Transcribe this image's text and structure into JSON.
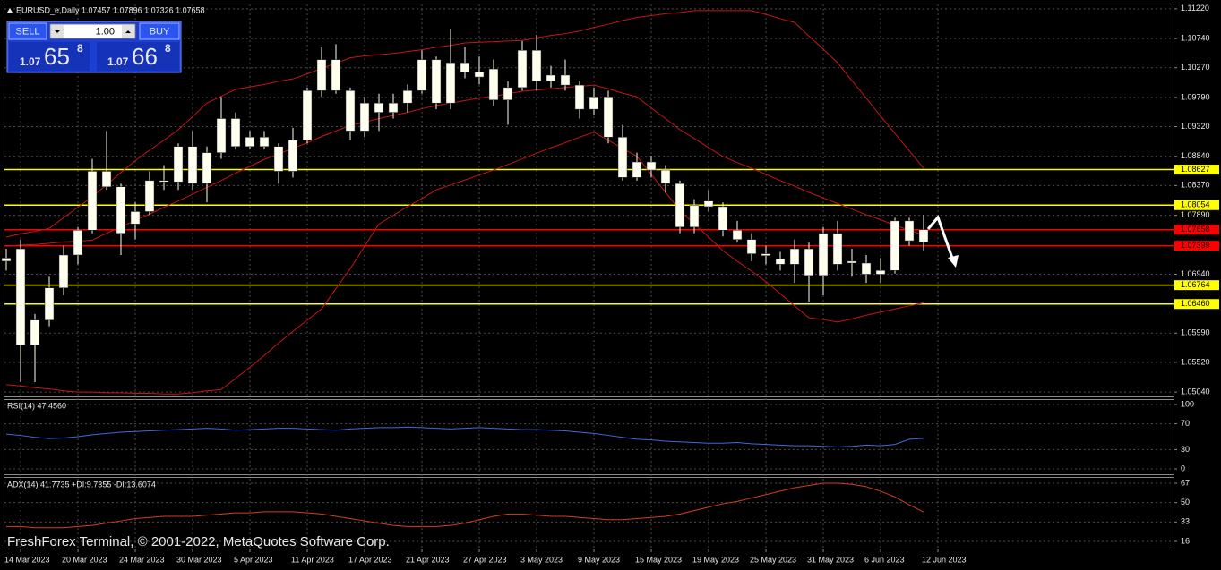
{
  "trade_panel": {
    "sell": "SELL",
    "volume": "1.00",
    "buy": "BUY",
    "bid": {
      "prefix": "1.07",
      "big": "65",
      "small": "8"
    },
    "ask": {
      "prefix": "1.07",
      "big": "66",
      "small": "8"
    }
  },
  "watermark": "FreshForex Terminal, © 2001-2022, MetaQuotes Software Corp.",
  "chart_data": [
    {
      "type": "candlestick",
      "title": "EURUSD_e,Daily 1.07457 1.07896 1.07326 1.07658",
      "categories": [
        null,
        "14 Mar 2023",
        null,
        null,
        null,
        "20 Mar 2023",
        null,
        null,
        null,
        "24 Mar 2023",
        null,
        null,
        null,
        "30 Mar 2023",
        null,
        null,
        null,
        "5 Apr 2023",
        null,
        null,
        null,
        "11 Apr 2023",
        null,
        null,
        null,
        "17 Apr 2023",
        null,
        null,
        null,
        "21 Apr 2023",
        null,
        null,
        null,
        "27 Apr 2023",
        null,
        null,
        null,
        "3 May 2023",
        null,
        null,
        null,
        "9 May 2023",
        null,
        null,
        null,
        "15 May 2023",
        null,
        null,
        null,
        "19 May 2023",
        null,
        null,
        null,
        "25 May 2023",
        null,
        null,
        null,
        "31 May 2023",
        null,
        null,
        null,
        "6 Jun 2023",
        null,
        null,
        null,
        "12 Jun 2023"
      ],
      "open": [
        1.0715,
        1.0735,
        1.058,
        1.062,
        1.0672,
        1.0725,
        1.0765,
        1.086,
        1.0835,
        1.0775,
        1.0795,
        1.0843,
        1.0843,
        1.09,
        1.084,
        1.089,
        1.0945,
        1.09,
        1.0915,
        1.09,
        1.086,
        1.091,
        1.099,
        1.104,
        1.099,
        1.0925,
        1.0955,
        1.097,
        1.097,
        1.099,
        1.104,
        1.097,
        1.1035,
        1.102,
        1.1025,
        1.0975,
        1.0995,
        1.1055,
        1.1015,
        1.1015,
        1.0999,
        1.096,
        1.098,
        1.0915,
        1.085,
        1.0875,
        1.0862,
        1.084,
        1.077,
        1.0812,
        1.0803,
        1.0765,
        1.075,
        1.0727,
        1.0719,
        1.071,
        1.0735,
        1.0692,
        1.076,
        1.0712,
        1.0712,
        1.0694,
        1.07,
        1.078,
        1.07457,
        null
      ],
      "high": [
        1.0735,
        1.075,
        1.063,
        1.069,
        1.074,
        1.077,
        1.088,
        1.0925,
        1.084,
        1.081,
        1.086,
        1.087,
        1.0905,
        1.0925,
        1.09,
        1.098,
        1.0955,
        1.0925,
        1.0925,
        1.0905,
        1.093,
        1.0995,
        1.106,
        1.1065,
        1.0995,
        1.098,
        1.0985,
        1.0985,
        1.1,
        1.1055,
        1.1045,
        1.109,
        1.106,
        1.1045,
        1.104,
        1.1005,
        1.107,
        1.108,
        1.103,
        1.104,
        1.1005,
        1.0995,
        1.099,
        1.0935,
        1.089,
        1.0885,
        1.087,
        1.0845,
        1.0815,
        1.083,
        1.081,
        1.078,
        1.076,
        1.074,
        1.073,
        1.075,
        1.0745,
        1.077,
        1.078,
        1.0735,
        1.0725,
        1.072,
        1.0785,
        1.0785,
        1.07896,
        null
      ],
      "low": [
        1.07,
        1.052,
        1.052,
        1.061,
        1.066,
        1.071,
        1.076,
        1.083,
        1.0725,
        1.075,
        1.079,
        1.083,
        1.083,
        1.083,
        1.081,
        1.088,
        1.0895,
        1.0895,
        1.0895,
        1.084,
        1.085,
        1.0905,
        1.098,
        1.0985,
        1.091,
        1.0915,
        1.0925,
        1.0945,
        1.0955,
        1.0985,
        1.096,
        1.096,
        1.101,
        1.1,
        1.0965,
        1.0935,
        1.099,
        1.099,
        1.0995,
        1.099,
        1.0945,
        1.095,
        1.0905,
        1.0845,
        1.0845,
        1.085,
        1.0825,
        1.076,
        1.076,
        1.0795,
        1.0755,
        1.0745,
        1.0715,
        1.071,
        1.07,
        1.068,
        1.065,
        1.066,
        1.07,
        1.069,
        1.068,
        1.068,
        1.0695,
        1.074,
        1.07326,
        null
      ],
      "close": [
        1.072,
        1.058,
        1.062,
        1.0672,
        1.0725,
        1.0765,
        1.086,
        1.0835,
        1.076,
        1.0795,
        1.0845,
        1.0845,
        1.09,
        1.084,
        1.089,
        1.0945,
        1.09,
        1.0915,
        1.09,
        1.086,
        1.091,
        1.099,
        1.104,
        1.099,
        1.0925,
        1.097,
        1.097,
        1.0955,
        1.099,
        1.104,
        1.097,
        1.1035,
        1.102,
        1.1012,
        1.0975,
        1.0995,
        1.1055,
        1.1005,
        1.1005,
        1.0999,
        1.096,
        1.098,
        1.0915,
        1.085,
        1.0875,
        1.0862,
        1.084,
        1.077,
        1.0805,
        1.0803,
        1.0765,
        1.075,
        1.0727,
        1.0724,
        1.071,
        1.0735,
        1.0692,
        1.076,
        1.071,
        1.0715,
        1.0694,
        1.07,
        1.078,
        1.0748,
        1.07658,
        null
      ],
      "color": "#fffff0",
      "overlays": [
        {
          "color": "#c81414",
          "values": [
            1.0754,
            1.0759,
            1.0763,
            1.0768,
            1.0785,
            1.0802,
            1.0819,
            1.0838,
            1.0858,
            1.0877,
            1.0894,
            1.091,
            1.0927,
            1.0948,
            1.097,
            1.0981,
            1.0992,
            1.0996,
            1.1,
            1.1005,
            1.1009,
            1.1017,
            1.1026,
            1.1034,
            1.1043,
            1.1046,
            1.1048,
            1.105,
            1.1053,
            1.1056,
            1.106,
            1.1063,
            1.1067,
            1.1068,
            1.1069,
            1.107,
            1.1071,
            1.1075,
            1.1079,
            1.1082,
            1.1086,
            1.1092,
            1.1097,
            1.1103,
            1.1108,
            1.1111,
            1.1114,
            1.1116,
            1.1119,
            1.1119,
            1.1119,
            1.1119,
            1.1119,
            1.1113,
            1.1106,
            1.11,
            1.1078,
            1.1057,
            1.1035,
            1.1006,
            1.0978,
            1.0949,
            1.0921,
            1.0893,
            1.0865,
            null
          ]
        },
        {
          "color": "#c81414",
          "values": [
            1.0739,
            1.0741,
            1.0742,
            1.0744,
            1.0746,
            1.0747,
            1.0749,
            1.076,
            1.077,
            1.0781,
            1.0791,
            1.0802,
            1.0812,
            1.0823,
            1.0834,
            1.0845,
            1.0857,
            1.0868,
            1.0879,
            1.0888,
            1.0897,
            1.0906,
            1.0916,
            1.0925,
            1.0934,
            1.0939,
            1.0945,
            1.095,
            1.0955,
            1.0961,
            1.0966,
            1.097,
            1.0974,
            1.0978,
            1.0981,
            1.0985,
            1.0989,
            1.0991,
            1.0993,
            1.0995,
            1.0997,
            1.0999,
            1.0993,
            1.0986,
            1.098,
            1.0962,
            1.0945,
            1.0927,
            1.0913,
            1.0898,
            1.0884,
            1.0874,
            1.0865,
            1.0855,
            1.0845,
            1.0836,
            1.0826,
            1.0817,
            1.0808,
            1.0799,
            1.079,
            1.0782,
            1.0773,
            1.0765,
            1.0757,
            null
          ]
        },
        {
          "color": "#c81414",
          "values": [
            1.0516,
            1.0514,
            1.0511,
            1.0509,
            1.0506,
            1.0504,
            1.0504,
            1.0503,
            1.0503,
            1.0502,
            1.0502,
            1.0501,
            1.0501,
            1.0503,
            1.0506,
            1.0508,
            1.0526,
            1.0544,
            1.0563,
            1.0583,
            1.0602,
            1.062,
            1.0638,
            1.0671,
            1.0703,
            1.0739,
            1.0775,
            1.0789,
            1.0803,
            1.0816,
            1.083,
            1.0838,
            1.0846,
            1.0854,
            1.0862,
            1.0871,
            1.088,
            1.0889,
            1.0898,
            1.0906,
            1.0915,
            1.0923,
            1.091,
            1.0897,
            1.0884,
            1.0855,
            1.0826,
            1.0797,
            1.0775,
            1.0754,
            1.0732,
            1.0715,
            1.0699,
            1.0682,
            1.0663,
            1.0643,
            1.0624,
            1.0621,
            1.0617,
            1.0622,
            1.0628,
            1.0633,
            1.0638,
            1.0643,
            1.0648,
            null
          ]
        }
      ],
      "levels": [
        {
          "value": 1.08627,
          "color": "#ffff00"
        },
        {
          "value": 1.08054,
          "color": "#ffff00"
        },
        {
          "value": 1.06764,
          "color": "#ffff00"
        },
        {
          "value": {
            "value": 1.0646,
            "label": "1.06460"
          },
          "color": "#ffff00"
        },
        {
          "value": 1.07658,
          "color": "#ff0000"
        },
        {
          "value": 1.07399,
          "color": "#ff0000"
        }
      ],
      "ylim": [
        1.0497,
        1.1129
      ],
      "yticks": [
        {
          "value": 1.1122,
          "label": "1.11220"
        },
        {
          "value": 1.1074,
          "label": "1.10740"
        },
        {
          "value": 1.1027,
          "label": "1.10270"
        },
        {
          "value": 1.0979,
          "label": "1.09790"
        },
        {
          "value": 1.0932,
          "label": "1.09320"
        },
        {
          "value": 1.0884,
          "label": "1.08840"
        },
        {
          "value": 1.0837,
          "label": "1.08370"
        },
        {
          "value": 1.0789,
          "label": "1.07890"
        },
        {
          "value": 1.0694,
          "label": "1.06940"
        },
        {
          "value": 1.0599,
          "label": "1.05990"
        },
        {
          "value": 1.0552,
          "label": "1.05520"
        },
        {
          "value": 1.0504,
          "label": "1.05040"
        }
      ],
      "grid": true
    },
    {
      "type": "line",
      "title": "RSI(14) 47.4560",
      "color": "#4169e1",
      "values": [
        54,
        52,
        49,
        47,
        48,
        50,
        53,
        55,
        57,
        58,
        59,
        60,
        61,
        62,
        63,
        62,
        60,
        61,
        62,
        63,
        63,
        62,
        61,
        60,
        62,
        63,
        64,
        64,
        65,
        64,
        63,
        62,
        63,
        64,
        63,
        62,
        61,
        61,
        60,
        59,
        57,
        55,
        52,
        49,
        46,
        45,
        43,
        42,
        41,
        40,
        40,
        41,
        39,
        38,
        37,
        36,
        36,
        35,
        34,
        35,
        37,
        36,
        38,
        46,
        47.456
      ],
      "ylim": [
        0,
        100
      ],
      "yticks": [
        100,
        70,
        30,
        0
      ],
      "grid": true
    },
    {
      "type": "line",
      "title": "ADX(14) 41.7735 +DI:9.7355 -DI:13.6074",
      "color": "#d2401e",
      "values": [
        29,
        29,
        28,
        28,
        28,
        29,
        30,
        32,
        34,
        36,
        37,
        38,
        38,
        38,
        39,
        40,
        41,
        41,
        42,
        42,
        42,
        41,
        40,
        38,
        36,
        34,
        32,
        30,
        29,
        29,
        29,
        30,
        32,
        35,
        38,
        40,
        40,
        39,
        38,
        38,
        37,
        36,
        35,
        35,
        36,
        37,
        38,
        40,
        43,
        46,
        49,
        51,
        54,
        57,
        60,
        63,
        65,
        67,
        67,
        66,
        64,
        60,
        55,
        48,
        41.7735
      ],
      "ylim": [
        16,
        67
      ],
      "yticks": [
        67,
        50,
        33,
        16
      ],
      "grid": true
    }
  ]
}
